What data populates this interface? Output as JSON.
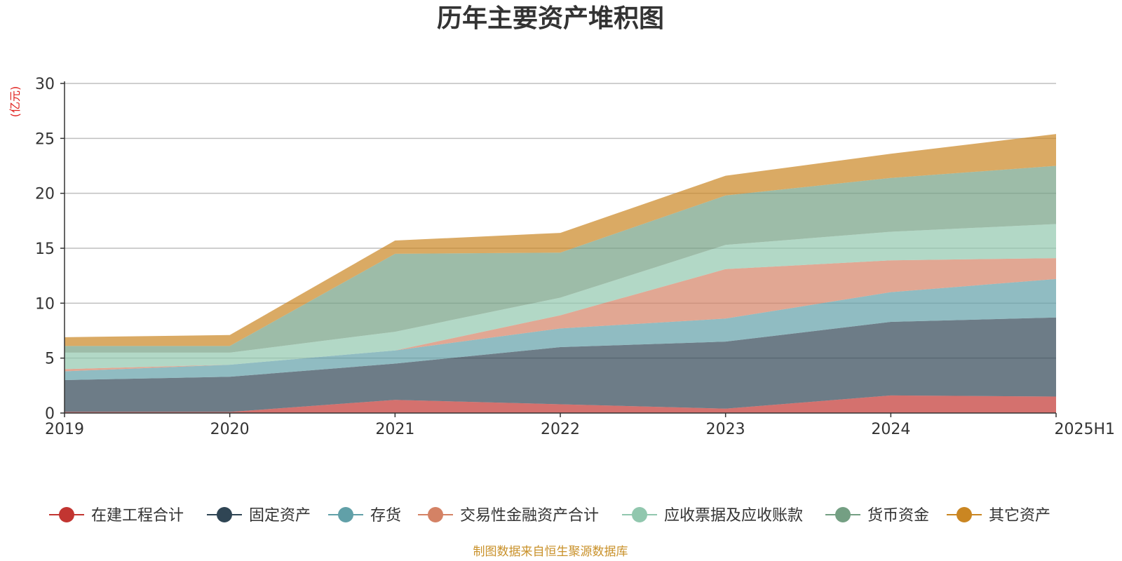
{
  "chart_data": {
    "type": "area",
    "stacked": true,
    "title": "历年主要资产堆积图",
    "ylabel": "(亿元)",
    "xlabel": "",
    "categories": [
      "2019",
      "2020",
      "2021",
      "2022",
      "2023",
      "2024",
      "2025H1"
    ],
    "ylim": [
      0,
      30
    ],
    "yticks": [
      0,
      5,
      10,
      15,
      20,
      25,
      30
    ],
    "grid": true,
    "legend_position": "bottom",
    "series": [
      {
        "name": "在建工程合计",
        "color": "#c23531",
        "values": [
          0.1,
          0.1,
          1.2,
          0.8,
          0.4,
          1.6,
          1.5
        ]
      },
      {
        "name": "固定资产",
        "color": "#2f4554",
        "values": [
          2.9,
          3.2,
          3.3,
          5.2,
          6.1,
          6.7,
          7.2
        ]
      },
      {
        "name": "存货",
        "color": "#61a0a8",
        "values": [
          0.8,
          1.1,
          1.2,
          1.7,
          2.1,
          2.7,
          3.5
        ]
      },
      {
        "name": "交易性金融资产合计",
        "color": "#d48265",
        "values": [
          0.2,
          0.0,
          0.0,
          1.2,
          4.5,
          2.9,
          1.9
        ]
      },
      {
        "name": "应收票据及应收账款",
        "color": "#91c7ae",
        "values": [
          1.5,
          1.1,
          1.7,
          1.6,
          2.2,
          2.6,
          3.1
        ]
      },
      {
        "name": "货币资金",
        "color": "#749f83",
        "values": [
          0.6,
          0.6,
          7.1,
          4.1,
          4.5,
          4.9,
          5.3
        ]
      },
      {
        "name": "其它资产",
        "color": "#ca8622",
        "values": [
          0.8,
          1.0,
          1.2,
          1.8,
          1.8,
          2.2,
          2.9
        ]
      }
    ],
    "source_note": "制图数据来自恒生聚源数据库"
  }
}
